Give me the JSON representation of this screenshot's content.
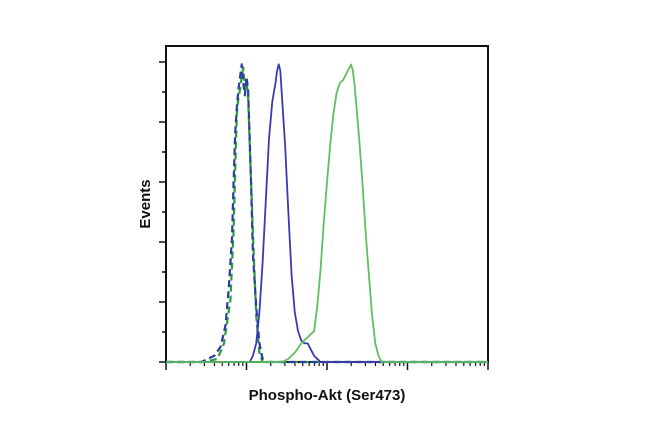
{
  "chart_data": {
    "type": "line",
    "title": "",
    "xlabel": "Phospho-Akt (Ser473)",
    "ylabel": "Events",
    "xlim": [
      0,
      1
    ],
    "ylim": [
      0,
      1
    ],
    "grid": false,
    "legend": "none",
    "x_ticks": {
      "major": 4,
      "minor_per_decade": 9
    },
    "y_ticks": {
      "major": 5,
      "minor_per_major": 2
    },
    "series": [
      {
        "color": "#2a9d3b",
        "style": "dashed",
        "points": [
          [
            0.0,
            0
          ],
          [
            0.12,
            0.0
          ],
          [
            0.16,
            0.01
          ],
          [
            0.18,
            0.06
          ],
          [
            0.2,
            0.2
          ],
          [
            0.21,
            0.42
          ],
          [
            0.215,
            0.62
          ],
          [
            0.22,
            0.8
          ],
          [
            0.225,
            0.85
          ],
          [
            0.23,
            0.88
          ],
          [
            0.235,
            0.92
          ],
          [
            0.24,
            0.95
          ],
          [
            0.245,
            0.88
          ],
          [
            0.25,
            0.9
          ],
          [
            0.255,
            0.86
          ],
          [
            0.26,
            0.7
          ],
          [
            0.27,
            0.42
          ],
          [
            0.28,
            0.15
          ],
          [
            0.29,
            0.03
          ],
          [
            0.3,
            0.0
          ],
          [
            1.0,
            0.0
          ]
        ]
      },
      {
        "color": "#2b3da0",
        "style": "dashed",
        "points": [
          [
            0.0,
            0
          ],
          [
            0.11,
            0.0
          ],
          [
            0.13,
            0.01
          ],
          [
            0.15,
            0.02
          ],
          [
            0.17,
            0.05
          ],
          [
            0.185,
            0.12
          ],
          [
            0.195,
            0.24
          ],
          [
            0.205,
            0.4
          ],
          [
            0.21,
            0.58
          ],
          [
            0.215,
            0.74
          ],
          [
            0.22,
            0.82
          ],
          [
            0.225,
            0.88
          ],
          [
            0.23,
            0.92
          ],
          [
            0.235,
            0.96
          ],
          [
            0.24,
            0.9
          ],
          [
            0.245,
            0.86
          ],
          [
            0.25,
            0.92
          ],
          [
            0.255,
            0.88
          ],
          [
            0.26,
            0.72
          ],
          [
            0.265,
            0.55
          ],
          [
            0.27,
            0.35
          ],
          [
            0.28,
            0.18
          ],
          [
            0.29,
            0.06
          ],
          [
            0.3,
            0.01
          ],
          [
            0.31,
            0.0
          ],
          [
            1.0,
            0.0
          ]
        ]
      },
      {
        "color": "#3a3ab0",
        "style": "solid",
        "points": [
          [
            0.0,
            0
          ],
          [
            0.26,
            0.0
          ],
          [
            0.27,
            0.02
          ],
          [
            0.28,
            0.06
          ],
          [
            0.29,
            0.16
          ],
          [
            0.3,
            0.32
          ],
          [
            0.31,
            0.52
          ],
          [
            0.32,
            0.72
          ],
          [
            0.33,
            0.84
          ],
          [
            0.34,
            0.9
          ],
          [
            0.345,
            0.94
          ],
          [
            0.35,
            0.96
          ],
          [
            0.355,
            0.94
          ],
          [
            0.36,
            0.86
          ],
          [
            0.37,
            0.7
          ],
          [
            0.38,
            0.48
          ],
          [
            0.39,
            0.28
          ],
          [
            0.4,
            0.16
          ],
          [
            0.41,
            0.1
          ],
          [
            0.42,
            0.07
          ],
          [
            0.43,
            0.06
          ],
          [
            0.44,
            0.06
          ],
          [
            0.45,
            0.04
          ],
          [
            0.46,
            0.02
          ],
          [
            0.48,
            0.0
          ],
          [
            1.0,
            0.0
          ]
        ]
      },
      {
        "color": "#5cc15e",
        "style": "solid",
        "points": [
          [
            0.0,
            0
          ],
          [
            0.36,
            0.0
          ],
          [
            0.38,
            0.01
          ],
          [
            0.4,
            0.03
          ],
          [
            0.42,
            0.06
          ],
          [
            0.44,
            0.08
          ],
          [
            0.46,
            0.1
          ],
          [
            0.47,
            0.18
          ],
          [
            0.48,
            0.3
          ],
          [
            0.49,
            0.45
          ],
          [
            0.5,
            0.58
          ],
          [
            0.51,
            0.7
          ],
          [
            0.52,
            0.8
          ],
          [
            0.53,
            0.87
          ],
          [
            0.54,
            0.9
          ],
          [
            0.55,
            0.91
          ],
          [
            0.56,
            0.93
          ],
          [
            0.57,
            0.95
          ],
          [
            0.575,
            0.96
          ],
          [
            0.58,
            0.94
          ],
          [
            0.585,
            0.9
          ],
          [
            0.59,
            0.84
          ],
          [
            0.6,
            0.72
          ],
          [
            0.61,
            0.58
          ],
          [
            0.62,
            0.42
          ],
          [
            0.63,
            0.28
          ],
          [
            0.64,
            0.15
          ],
          [
            0.65,
            0.06
          ],
          [
            0.66,
            0.02
          ],
          [
            0.67,
            0.0
          ],
          [
            1.0,
            0.0
          ]
        ]
      }
    ]
  }
}
